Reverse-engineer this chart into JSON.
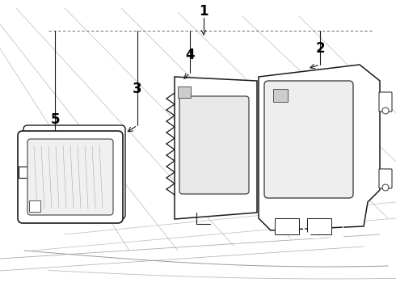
{
  "bg_color": "#ffffff",
  "line_color": "#1a1a1a",
  "label_color": "#000000",
  "figsize": [
    4.9,
    3.6
  ],
  "dpi": 100,
  "leader_line_color": "#333333",
  "diag_line_color": "#888888",
  "component_fill": "#ffffff",
  "lens_inner_fill": "#e0e0e0"
}
